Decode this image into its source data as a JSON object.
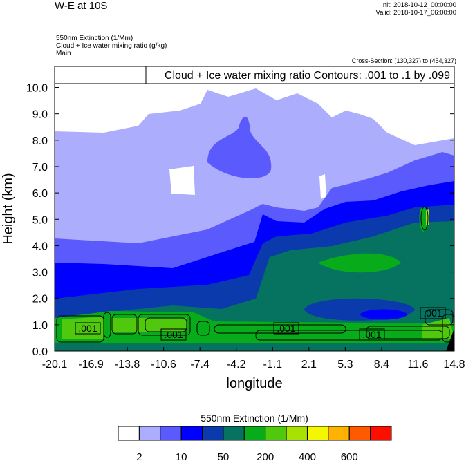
{
  "header": {
    "title": "W-E at 10S",
    "init": "Init: 2018-10-12_00:00:00",
    "valid": "Valid: 2018-10-17_06:00:00",
    "field_lines": [
      "550nm Extinction   (1/Mm)",
      "Cloud + Ice water mixing ratio   (g/kg)",
      "Main"
    ],
    "cross_section": "Cross-Section: (130,327) to (454,327)"
  },
  "chart_data": {
    "type": "heatmap",
    "subtype": "filled-contour cross-section with line contours",
    "contour_info": "Cloud + Ice water mixing ratio Contours: .001 to .1 by .099",
    "xlabel": "longitude",
    "ylabel": "Height (km)",
    "xlim": [
      -20.1,
      14.8
    ],
    "ylim": [
      0,
      10.8
    ],
    "x_ticks": [
      "-20.1",
      "-16.9",
      "-13.8",
      "-10.6",
      "-7.4",
      "-4.2",
      "-1.1",
      "2.1",
      "5.3",
      "8.4",
      "11.6",
      "14.8"
    ],
    "y_ticks": [
      "0.0",
      "1.0",
      "2.0",
      "3.0",
      "4.0",
      "5.0",
      "6.0",
      "7.0",
      "8.0",
      "9.0",
      "10.0"
    ],
    "contour_labels": [
      ".001",
      ".001",
      ".001",
      ".001",
      ".001"
    ],
    "colorbar": {
      "title": "550nm Extinction  (1/Mm)",
      "colors": [
        "#ffffff",
        "#adadfd",
        "#5a5afd",
        "#0000ff",
        "#0a3aac",
        "#05735f",
        "#08ac1a",
        "#50c80d",
        "#a8e205",
        "#f3f800",
        "#ffb300",
        "#ff5a00",
        "#ff0e00"
      ],
      "labels": [
        "2",
        "10",
        "50",
        "200",
        "400",
        "600"
      ],
      "label_boundaries": [
        1,
        3,
        5,
        7,
        9,
        11
      ]
    }
  }
}
